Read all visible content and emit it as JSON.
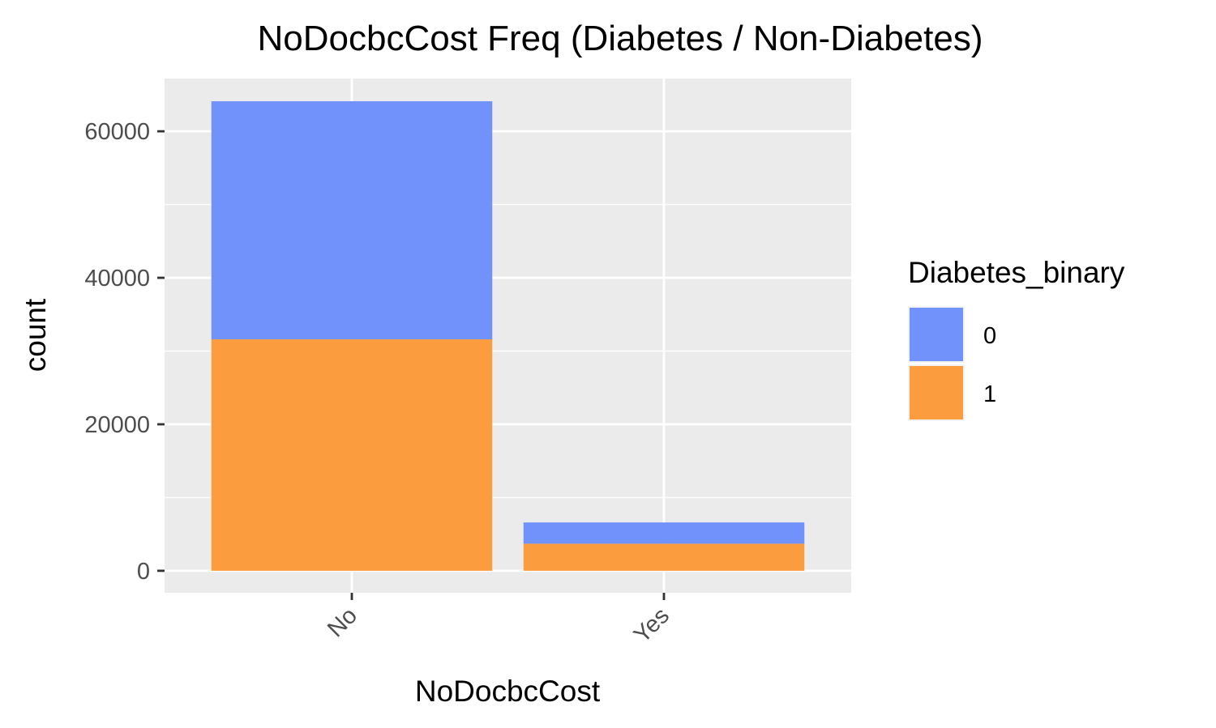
{
  "chart_data": {
    "type": "bar",
    "stacked": true,
    "title": "NoDocbcCost Freq (Diabetes / Non-Diabetes)",
    "xlabel": "NoDocbcCost",
    "ylabel": "count",
    "categories": [
      "No",
      "Yes"
    ],
    "series": [
      {
        "name": "0",
        "values": [
          32500,
          2900
        ],
        "color": "#7092fa"
      },
      {
        "name": "1",
        "values": [
          31600,
          3700
        ],
        "color": "#fb9c3e"
      }
    ],
    "ylim": [
      -3000,
      67200
    ],
    "yticks": [
      0,
      20000,
      40000,
      60000
    ],
    "ytick_labels": [
      "0",
      "20000",
      "40000",
      "60000"
    ],
    "grid": true,
    "panel_background": "#ebebeb",
    "legend": {
      "title": "Diabetes_binary",
      "placement": "right",
      "entries": [
        "0",
        "1"
      ]
    }
  }
}
